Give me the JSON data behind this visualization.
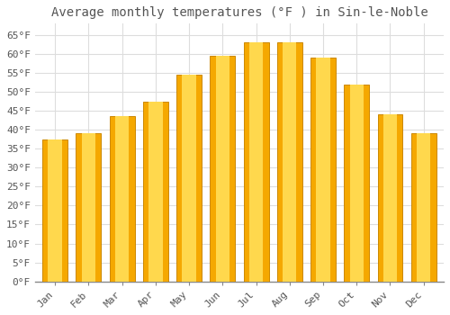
{
  "title": "Average monthly temperatures (°F ) in Sin-le-Noble",
  "months": [
    "Jan",
    "Feb",
    "Mar",
    "Apr",
    "May",
    "Jun",
    "Jul",
    "Aug",
    "Sep",
    "Oct",
    "Nov",
    "Dec"
  ],
  "values": [
    37.5,
    39.0,
    43.5,
    47.5,
    54.5,
    59.5,
    63.0,
    63.0,
    59.0,
    52.0,
    44.0,
    39.0
  ],
  "bar_color_outer": "#F5A800",
  "bar_color_inner": "#FFD84D",
  "bar_edge_color": "#CC8800",
  "background_color": "#FFFFFF",
  "grid_color": "#DDDDDD",
  "text_color": "#555555",
  "ylim": [
    0,
    68
  ],
  "yticks": [
    0,
    5,
    10,
    15,
    20,
    25,
    30,
    35,
    40,
    45,
    50,
    55,
    60,
    65
  ],
  "title_fontsize": 10,
  "tick_fontsize": 8,
  "font_family": "monospace",
  "bar_width": 0.75
}
